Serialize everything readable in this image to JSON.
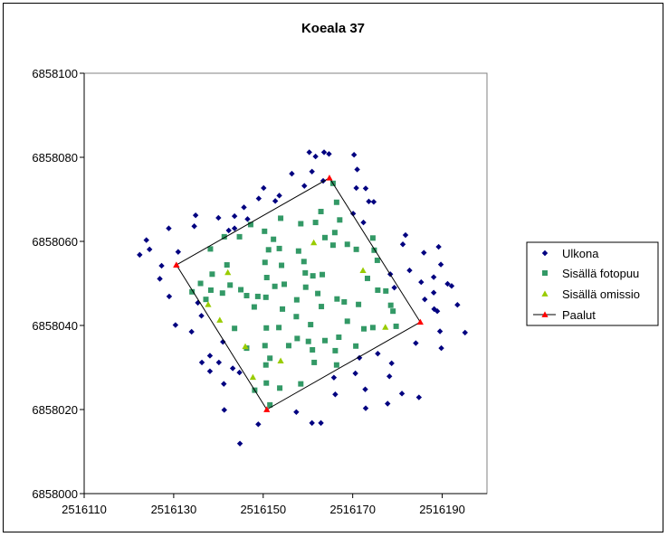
{
  "chart_data": {
    "type": "scatter",
    "title": "Koeala 37",
    "xlabel": "",
    "ylabel": "",
    "xlim": [
      2516110,
      2516200
    ],
    "ylim": [
      6858000,
      6858100
    ],
    "x_ticks": [
      2516110,
      2516130,
      2516150,
      2516170,
      2516190
    ],
    "y_ticks": [
      6858000,
      6858020,
      6858040,
      6858060,
      6858080,
      6858100
    ],
    "grid": false,
    "legend_position": "right",
    "colors": {
      "navy": "#000080",
      "teal": "#339966",
      "yellowgreen": "#99cc00",
      "red": "#ff0000",
      "line": "#000000"
    },
    "series": [
      {
        "name": "Ulkona",
        "marker": "diamond",
        "color": "#000080",
        "points": [
          [
            2516160.3,
            6858081.2
          ],
          [
            2516161.7,
            6858080.2
          ],
          [
            2516163.6,
            6858081.2
          ],
          [
            2516164.7,
            6858080.8
          ],
          [
            2516170.3,
            6858080.6
          ],
          [
            2516156.4,
            6858076.1
          ],
          [
            2516160.9,
            6858076.6
          ],
          [
            2516171.0,
            6858077.1
          ],
          [
            2516163.4,
            6858074.4
          ],
          [
            2516159.2,
            6858073.2
          ],
          [
            2516150.1,
            6858072.7
          ],
          [
            2516152.7,
            6858069.6
          ],
          [
            2516153.6,
            6858070.9
          ],
          [
            2516149.0,
            6858070.2
          ],
          [
            2516145.7,
            6858068.1
          ],
          [
            2516170.8,
            6858072.7
          ],
          [
            2516172.9,
            6858072.6
          ],
          [
            2516173.6,
            6858069.5
          ],
          [
            2516174.7,
            6858069.4
          ],
          [
            2516172.4,
            6858064.5
          ],
          [
            2516170.1,
            6858066.6
          ],
          [
            2516134.9,
            6858066.2
          ],
          [
            2516140.0,
            6858065.6
          ],
          [
            2516143.6,
            6858066.0
          ],
          [
            2516146.5,
            6858065.3
          ],
          [
            2516142.3,
            6858062.6
          ],
          [
            2516134.6,
            6858063.6
          ],
          [
            2516143.6,
            6858063.1
          ],
          [
            2516128.9,
            6858063.1
          ],
          [
            2516123.9,
            6858060.3
          ],
          [
            2516124.6,
            6858058.1
          ],
          [
            2516127.3,
            6858054.2
          ],
          [
            2516122.4,
            6858056.8
          ],
          [
            2516131.0,
            6858057.5
          ],
          [
            2516126.9,
            6858051.1
          ],
          [
            2516129.0,
            6858046.9
          ],
          [
            2516130.4,
            6858040.1
          ],
          [
            2516134.0,
            6858038.5
          ],
          [
            2516136.2,
            6858042.3
          ],
          [
            2516135.4,
            6858045.4
          ],
          [
            2516136.3,
            6858031.2
          ],
          [
            2516138.1,
            6858029.1
          ],
          [
            2516138.1,
            6858032.8
          ],
          [
            2516140.1,
            6858031.2
          ],
          [
            2516141.0,
            6858036.1
          ],
          [
            2516141.2,
            6858026.1
          ],
          [
            2516143.2,
            6858029.8
          ],
          [
            2516144.7,
            6858028.8
          ],
          [
            2516141.3,
            6858019.9
          ],
          [
            2516148.9,
            6858016.5
          ],
          [
            2516144.8,
            6858011.9
          ],
          [
            2516157.4,
            6858019.4
          ],
          [
            2516160.9,
            6858016.8
          ],
          [
            2516162.9,
            6858016.8
          ],
          [
            2516166.1,
            6858023.6
          ],
          [
            2516165.8,
            6858027.6
          ],
          [
            2516170.6,
            6858028.6
          ],
          [
            2516171.5,
            6858032.3
          ],
          [
            2516172.9,
            6858020.3
          ],
          [
            2516172.8,
            6858024.8
          ],
          [
            2516177.8,
            6858021.4
          ],
          [
            2516178.2,
            6858027.9
          ],
          [
            2516178.7,
            6858031.0
          ],
          [
            2516181.0,
            6858023.8
          ],
          [
            2516184.8,
            6858022.9
          ],
          [
            2516184.1,
            6858035.8
          ],
          [
            2516175.6,
            6858033.3
          ],
          [
            2516179.3,
            6858049.0
          ],
          [
            2516178.4,
            6858052.2
          ],
          [
            2516181.2,
            6858059.3
          ],
          [
            2516181.8,
            6858061.5
          ],
          [
            2516182.7,
            6858053.1
          ],
          [
            2516185.9,
            6858057.3
          ],
          [
            2516185.3,
            6858050.3
          ],
          [
            2516186.1,
            6858046.2
          ],
          [
            2516188.1,
            6858047.8
          ],
          [
            2516188.1,
            6858051.5
          ],
          [
            2516189.2,
            6858058.7
          ],
          [
            2516189.7,
            6858054.5
          ],
          [
            2516188.9,
            6858043.4
          ],
          [
            2516189.5,
            6858038.6
          ],
          [
            2516189.8,
            6858034.6
          ],
          [
            2516191.2,
            6858049.9
          ],
          [
            2516192.1,
            6858049.4
          ],
          [
            2516193.4,
            6858044.9
          ],
          [
            2516195.1,
            6858038.3
          ],
          [
            2516188.2,
            6858043.9
          ]
        ]
      },
      {
        "name": "Sisällä fotopuu",
        "marker": "square",
        "color": "#339966",
        "points": [
          [
            2516165.6,
            6858073.8
          ],
          [
            2516162.9,
            6858067.1
          ],
          [
            2516166.4,
            6858069.3
          ],
          [
            2516166.0,
            6858062.1
          ],
          [
            2516161.7,
            6858064.5
          ],
          [
            2516167.1,
            6858065.1
          ],
          [
            2516153.9,
            6858065.5
          ],
          [
            2516158.4,
            6858064.2
          ],
          [
            2516163.8,
            6858060.9
          ],
          [
            2516165.6,
            6858059.1
          ],
          [
            2516168.8,
            6858059.3
          ],
          [
            2516170.8,
            6858058.1
          ],
          [
            2516174.5,
            6858060.8
          ],
          [
            2516174.8,
            6858057.9
          ],
          [
            2516175.5,
            6858055.5
          ],
          [
            2516173.3,
            6858051.2
          ],
          [
            2516175.6,
            6858048.4
          ],
          [
            2516177.4,
            6858048.2
          ],
          [
            2516178.5,
            6858044.8
          ],
          [
            2516179.0,
            6858043.4
          ],
          [
            2516179.7,
            6858039.8
          ],
          [
            2516174.5,
            6858039.5
          ],
          [
            2516171.3,
            6858045.0
          ],
          [
            2516168.1,
            6858045.6
          ],
          [
            2516172.5,
            6858039.2
          ],
          [
            2516168.8,
            6858041.0
          ],
          [
            2516166.9,
            6858037.2
          ],
          [
            2516170.7,
            6858035.1
          ],
          [
            2516166.1,
            6858034.0
          ],
          [
            2516166.4,
            6858030.6
          ],
          [
            2516161.4,
            6858031.2
          ],
          [
            2516161.0,
            6858034.2
          ],
          [
            2516163.8,
            6858036.4
          ],
          [
            2516160.1,
            6858036.2
          ],
          [
            2516160.6,
            6858040.2
          ],
          [
            2516163.0,
            6858044.5
          ],
          [
            2516166.5,
            6858046.3
          ],
          [
            2516162.2,
            6858047.6
          ],
          [
            2516161.1,
            6858051.8
          ],
          [
            2516163.2,
            6858052.1
          ],
          [
            2516159.4,
            6858052.5
          ],
          [
            2516159.1,
            6858055.2
          ],
          [
            2516157.9,
            6858057.7
          ],
          [
            2516159.5,
            6858049.1
          ],
          [
            2516154.7,
            6858049.8
          ],
          [
            2516154.1,
            6858054.3
          ],
          [
            2516152.6,
            6858049.3
          ],
          [
            2516150.8,
            6858051.4
          ],
          [
            2516150.4,
            6858055.0
          ],
          [
            2516151.2,
            6858058.0
          ],
          [
            2516152.3,
            6858060.5
          ],
          [
            2516153.6,
            6858058.3
          ],
          [
            2516150.3,
            6858062.4
          ],
          [
            2516147.2,
            6858064.0
          ],
          [
            2516144.7,
            6858061.1
          ],
          [
            2516141.3,
            6858061.1
          ],
          [
            2516138.2,
            6858058.2
          ],
          [
            2516141.9,
            6858054.4
          ],
          [
            2516142.6,
            6858049.6
          ],
          [
            2516140.9,
            6858047.7
          ],
          [
            2516145.0,
            6858048.5
          ],
          [
            2516146.3,
            6858047.1
          ],
          [
            2516148.8,
            6858046.9
          ],
          [
            2516150.6,
            6858046.7
          ],
          [
            2516148.0,
            6858044.4
          ],
          [
            2516150.7,
            6858039.4
          ],
          [
            2516153.5,
            6858039.5
          ],
          [
            2516154.3,
            6858043.9
          ],
          [
            2516157.5,
            6858046.1
          ],
          [
            2516157.4,
            6858042.1
          ],
          [
            2516157.6,
            6858036.9
          ],
          [
            2516155.7,
            6858035.2
          ],
          [
            2516150.4,
            6858035.2
          ],
          [
            2516150.6,
            6858030.6
          ],
          [
            2516151.5,
            6858032.2
          ],
          [
            2516153.7,
            6858025.1
          ],
          [
            2516150.7,
            6858026.3
          ],
          [
            2516148.1,
            6858024.6
          ],
          [
            2516151.5,
            6858021.1
          ],
          [
            2516158.4,
            6858026.1
          ],
          [
            2516146.3,
            6858034.6
          ],
          [
            2516143.6,
            6858039.3
          ],
          [
            2516138.3,
            6858048.4
          ],
          [
            2516136.0,
            6858050.0
          ],
          [
            2516134.1,
            6858048.0
          ],
          [
            2516137.2,
            6858046.2
          ],
          [
            2516138.6,
            6858052.2
          ]
        ]
      },
      {
        "name": "Sisällä omissio",
        "marker": "triangle",
        "color": "#99cc00",
        "points": [
          [
            2516161.3,
            6858059.7
          ],
          [
            2516172.3,
            6858053.1
          ],
          [
            2516142.1,
            6858052.6
          ],
          [
            2516137.7,
            6858045.0
          ],
          [
            2516140.3,
            6858041.3
          ],
          [
            2516177.3,
            6858039.6
          ],
          [
            2516146.0,
            6858035.0
          ],
          [
            2516153.9,
            6858031.6
          ],
          [
            2516147.7,
            6858027.7
          ]
        ]
      },
      {
        "name": "Paalut",
        "marker": "triangle",
        "color": "#ff0000",
        "line": true,
        "points": [
          [
            2516130.6,
            6858054.4
          ],
          [
            2516164.8,
            6858075.1
          ],
          [
            2516185.1,
            6858040.8
          ],
          [
            2516150.8,
            6858020.0
          ],
          [
            2516130.6,
            6858054.4
          ]
        ]
      }
    ]
  }
}
